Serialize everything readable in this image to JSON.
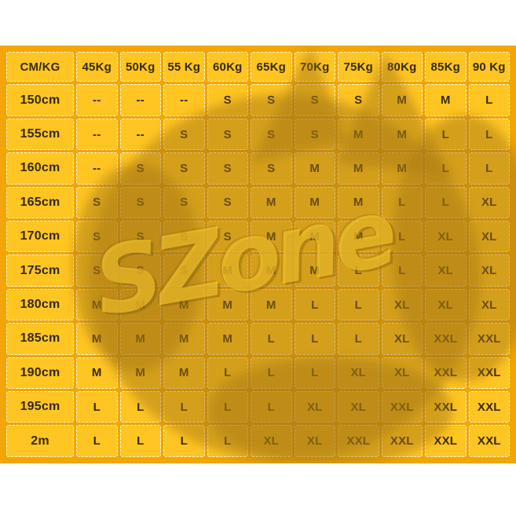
{
  "chart_data": {
    "type": "table",
    "columns": [
      "CM/KG",
      "45Kg",
      "50Kg",
      "55 Kg",
      "60Kg",
      "65Kg",
      "70Kg",
      "75Kg",
      "80Kg",
      "85Kg",
      "90 Kg"
    ],
    "rows": [
      [
        "150cm",
        "--",
        "--",
        "--",
        "S",
        "S",
        "S",
        "S",
        "M",
        "M",
        "L"
      ],
      [
        "155cm",
        "--",
        "--",
        "S",
        "S",
        "S",
        "S",
        "M",
        "M",
        "L",
        "L"
      ],
      [
        "160cm",
        "--",
        "S",
        "S",
        "S",
        "S",
        "M",
        "M",
        "M",
        "L",
        "L"
      ],
      [
        "165cm",
        "S",
        "S",
        "S",
        "S",
        "M",
        "M",
        "M",
        "L",
        "L",
        "XL"
      ],
      [
        "170cm",
        "S",
        "S",
        "S",
        "S",
        "M",
        "M",
        "M",
        "L",
        "XL",
        "XL"
      ],
      [
        "175cm",
        "S",
        "S",
        "S",
        "M",
        "M",
        "M",
        "L",
        "L",
        "XL",
        "XL"
      ],
      [
        "180cm",
        "M",
        "M",
        "M",
        "M",
        "M",
        "L",
        "L",
        "XL",
        "XL",
        "XL"
      ],
      [
        "185cm",
        "M",
        "M",
        "M",
        "M",
        "L",
        "L",
        "L",
        "XL",
        "XXL",
        "XXL"
      ],
      [
        "190cm",
        "M",
        "M",
        "M",
        "L",
        "L",
        "L",
        "XL",
        "XL",
        "XXL",
        "XXL"
      ],
      [
        "195cm",
        "L",
        "L",
        "L",
        "L",
        "L",
        "XL",
        "XL",
        "XXL",
        "XXL",
        "XXL"
      ],
      [
        "2m",
        "L",
        "L",
        "L",
        "L",
        "XL",
        "XL",
        "XXL",
        "XXL",
        "XXL",
        "XXL"
      ]
    ],
    "layout": {
      "grid": "stamp-cells",
      "legend": "none"
    }
  },
  "watermark": {
    "text": "SZone"
  },
  "colors": {
    "page": "#ffffff",
    "cell": "#ffc522",
    "gap": "#f2a503",
    "text": "#36290a",
    "watermark": "#a37514"
  }
}
